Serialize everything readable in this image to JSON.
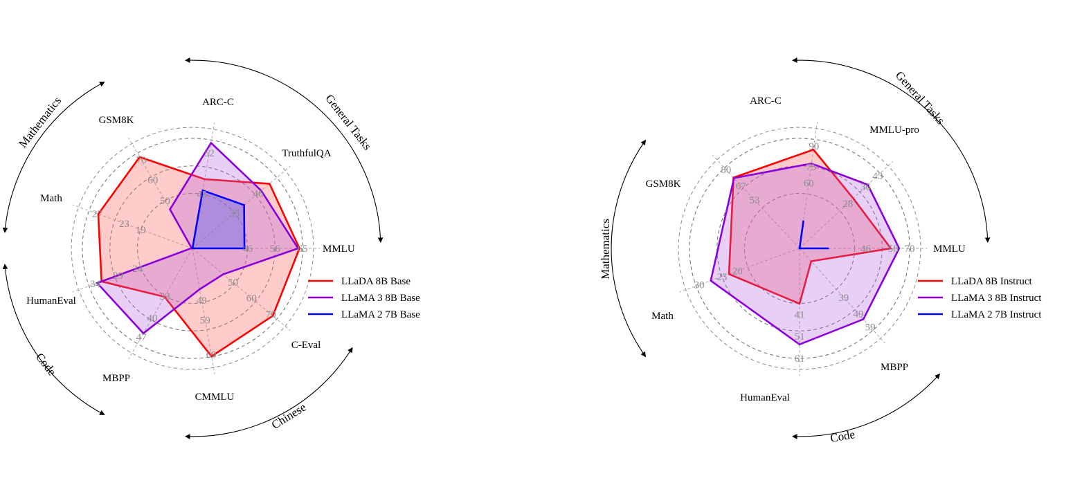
{
  "chart_data": [
    {
      "type": "radar",
      "axes": [
        "MMLU",
        "TruthfulQA",
        "ARC-C",
        "GSM8K",
        "Math",
        "HumanEval",
        "MBPP",
        "CMMLU",
        "C-Eval"
      ],
      "tick_labels": [
        [
          "46",
          "56",
          "65"
        ],
        [
          "35",
          "46"
        ],
        [
          "45",
          "52"
        ],
        [
          "50",
          "60",
          "70"
        ],
        [
          "19",
          "23",
          "27"
        ],
        [
          "24",
          "29",
          "34"
        ],
        [
          "33",
          "40",
          "47"
        ],
        [
          "49",
          "59",
          "69"
        ],
        [
          "50",
          "60",
          "70"
        ]
      ],
      "groups": [
        {
          "label": "General Tasks"
        },
        {
          "label": "Mathematics"
        },
        {
          "label": "Code"
        },
        {
          "label": "Chinese"
        }
      ],
      "series": [
        {
          "name": "LLaDA 8B Base",
          "color": "#ff0000",
          "fill": "#ff6b6b",
          "fill_opacity": 0.35,
          "values": [
            65.9,
            46.4,
            47.9,
            70.7,
            27.3,
            33.5,
            38.2,
            69.9,
            70.5
          ]
        },
        {
          "name": "LLaMA 3 8B Base",
          "color": "#8b00d9",
          "fill": "#b060e0",
          "fill_opacity": 0.3,
          "values": [
            65.4,
            44.0,
            53.1,
            53.1,
            15.1,
            34.2,
            47.4,
            50.7,
            51.7
          ]
        },
        {
          "name": "LLaMA 2 7B Base",
          "color": "#0000ff",
          "fill": "#6a6ae8",
          "fill_opacity": 0.45,
          "values": [
            45.9,
            39.0,
            46.3,
            14.3,
            3.2,
            12.8,
            18.3,
            32.5,
            34.0
          ]
        }
      ]
    },
    {
      "type": "radar",
      "axes": [
        "MMLU",
        "MMLU-pro",
        "ARC-C",
        "GSM8K",
        "Math",
        "HumanEval",
        "MBPP"
      ],
      "tick_labels": [
        [
          "46",
          "58",
          "70"
        ],
        [
          "28",
          "36",
          "43"
        ],
        [
          "60",
          "75",
          "90"
        ],
        [
          "53",
          "67",
          "80"
        ],
        [
          "20",
          "25",
          "30"
        ],
        [
          "41",
          "51",
          "61"
        ],
        [
          "39",
          "49",
          "59"
        ]
      ],
      "groups": [
        {
          "label": "General Tasks"
        },
        {
          "label": "Mathematics"
        },
        {
          "label": "Code"
        }
      ],
      "series": [
        {
          "name": "LLaDA 8B Instruct",
          "color": "#ff0000",
          "fill": "#ff6b6b",
          "fill_opacity": 0.35,
          "values": [
            65.5,
            37.0,
            88.5,
            78.6,
            26.6,
            47.6,
            34.2
          ]
        },
        {
          "name": "LLaMA 3 8B Instruct",
          "color": "#8b00d9",
          "fill": "#b060e0",
          "fill_opacity": 0.3,
          "values": [
            68.4,
            41.9,
            82.4,
            78.3,
            29.6,
            59.8,
            57.6
          ]
        },
        {
          "name": "LLaMA 2 7B Instruct",
          "color": "#0000ff",
          "fill": "#6a6ae8",
          "fill_opacity": 0.45,
          "values": [
            44.1,
            4.6,
            57.3,
            29.0,
            3.8,
            16.5,
            27.3
          ]
        }
      ]
    }
  ]
}
